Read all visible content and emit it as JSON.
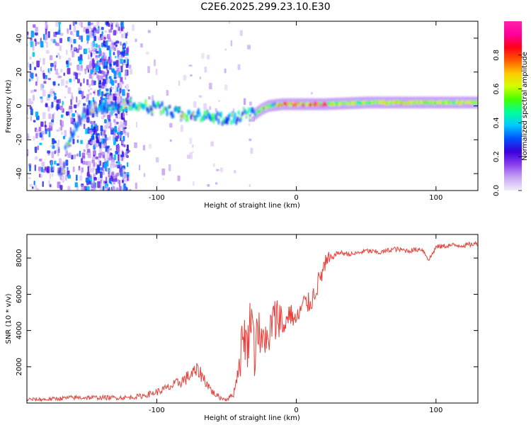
{
  "title": "C2E6.2025.299.23.10.E30",
  "chart_data": [
    {
      "type": "heatmap",
      "xlabel": "Height of straight line (km)",
      "ylabel": "Frequency (Hz)",
      "xlim": [
        -193,
        130
      ],
      "ylim": [
        -50,
        50
      ],
      "xticks": [
        -100,
        0,
        100
      ],
      "xtick_labels": [
        "-100",
        "0",
        "100"
      ],
      "yticks": [
        -40,
        -20,
        0,
        20,
        40
      ],
      "ytick_labels": [
        "-40",
        "-20",
        "0",
        "20",
        "40"
      ],
      "ridge": {
        "x": [
          -168,
          -165,
          -160,
          -155,
          -150,
          -145,
          -140,
          -130,
          -120,
          -110,
          -100,
          -90,
          -80,
          -70,
          -60,
          -50,
          -40,
          -35,
          -30,
          -25,
          -20,
          -10,
          0,
          20,
          50,
          80,
          100,
          130
        ],
        "y": [
          -40,
          -25,
          -15,
          -8,
          -3,
          0,
          0,
          -1,
          1,
          0,
          -1,
          -3,
          -5,
          -6,
          -7,
          -8,
          -6,
          -4,
          -5,
          -2,
          0,
          1,
          1,
          1,
          2,
          2,
          2,
          2
        ]
      },
      "colorbar": {
        "label": "Normalized spectral amplitude",
        "min": 0.0,
        "max": 1.0,
        "ticks": [
          0.0,
          0.2,
          0.4,
          0.6,
          0.8
        ],
        "tick_labels": [
          "0.0",
          "0.2",
          "0.4",
          "0.6",
          "0.8"
        ],
        "colors": [
          "#f2ecfb",
          "#c7a6f2",
          "#8a3ff0",
          "#3a00d8",
          "#0052ff",
          "#00c8ff",
          "#00ff9a",
          "#45ff00",
          "#d0ff00",
          "#ffc800",
          "#ff5a00",
          "#ff0018",
          "#ff009c",
          "#ff22aa"
        ]
      }
    },
    {
      "type": "line",
      "xlabel": "Height of straight line (km)",
      "ylabel": "SNR (10 * v/v)",
      "xlim": [
        -193,
        130
      ],
      "ylim": [
        0,
        9300
      ],
      "xticks": [
        -100,
        0,
        100
      ],
      "xtick_labels": [
        "-100",
        "0",
        "100"
      ],
      "yticks": [
        2000,
        4000,
        6000,
        8000
      ],
      "ytick_labels": [
        "2000",
        "4000",
        "6000",
        "8000"
      ],
      "color": "#e8413a",
      "series": [
        {
          "name": "SNR",
          "x": [
            -193,
            -180,
            -160,
            -140,
            -120,
            -110,
            -100,
            -90,
            -80,
            -75,
            -70,
            -65,
            -60,
            -55,
            -50,
            -45,
            -40,
            -38,
            -35,
            -32,
            -30,
            -28,
            -25,
            -22,
            -20,
            -18,
            -15,
            -12,
            -10,
            -5,
            0,
            5,
            10,
            15,
            20,
            25,
            30,
            40,
            50,
            60,
            70,
            80,
            90,
            95,
            100,
            110,
            120,
            130
          ],
          "y": [
            200,
            200,
            300,
            300,
            300,
            400,
            600,
            900,
            1300,
            1600,
            1800,
            1200,
            600,
            300,
            200,
            500,
            2500,
            4000,
            3000,
            5500,
            2500,
            4500,
            3000,
            4000,
            2500,
            4500,
            4500,
            5000,
            4000,
            5000,
            4500,
            5500,
            5500,
            6500,
            7500,
            8000,
            8300,
            8200,
            8400,
            8300,
            8500,
            8400,
            8500,
            7900,
            8600,
            8700,
            8700,
            8800
          ]
        }
      ]
    }
  ]
}
